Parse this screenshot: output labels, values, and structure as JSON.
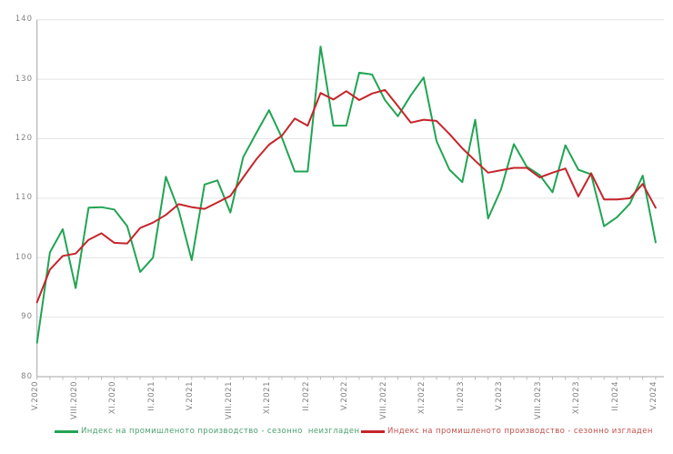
{
  "chart": {
    "y_axis": {
      "min": 80,
      "max": 140,
      "step": 10,
      "tick_labels": [
        "80",
        "90",
        "100",
        "110",
        "120",
        "130",
        "140"
      ]
    },
    "x_axis": {
      "label_every_n_months": 3,
      "shown_tick_labels": [
        "V.2020",
        "VIII.2020",
        "XI.2020",
        "II.2021",
        "V.2021",
        "VIII.2021",
        "XI.2021",
        "II.2022",
        "V.2022",
        "VIII.2022",
        "XI.2022",
        "II.2023",
        "V.2023",
        "VIII.2023",
        "XI.2023",
        "II.2024",
        "V.2024"
      ]
    },
    "colors": {
      "grid": "#e4e4e4",
      "axis": "#a6a6a6",
      "tick": "#bbbbbb",
      "label_text": "#828282"
    }
  },
  "legend": [
    {
      "label": "Индекс на промишленото производство - сезонно  неизгладен",
      "color": "#21a453",
      "text_color": "#4aa06d"
    },
    {
      "label": "Индекс на промишленото производство - сезонно изгладен",
      "color": "#c5252b",
      "text_color": "#c0504d"
    }
  ],
  "chart_data": {
    "type": "line",
    "title": "",
    "xlabel": "",
    "ylabel": "",
    "ylim": [
      80,
      140
    ],
    "grid": true,
    "legend_position": "bottom",
    "x": [
      "V.2020",
      "VI.2020",
      "VII.2020",
      "VIII.2020",
      "IX.2020",
      "X.2020",
      "XI.2020",
      "XII.2020",
      "I.2021",
      "II.2021",
      "III.2021",
      "IV.2021",
      "V.2021",
      "VI.2021",
      "VII.2021",
      "VIII.2021",
      "IX.2021",
      "X.2021",
      "XI.2021",
      "XII.2021",
      "I.2022",
      "II.2022",
      "III.2022",
      "IV.2022",
      "V.2022",
      "VI.2022",
      "VII.2022",
      "VIII.2022",
      "IX.2022",
      "X.2022",
      "XI.2022",
      "XII.2022",
      "I.2023",
      "II.2023",
      "III.2023",
      "IV.2023",
      "V.2023",
      "VI.2023",
      "VII.2023",
      "VIII.2023",
      "IX.2023",
      "X.2023",
      "XI.2023",
      "XII.2023",
      "I.2024",
      "II.2024",
      "III.2024",
      "IV.2024",
      "V.2024"
    ],
    "series": [
      {
        "name": "Индекс на промишленото производство - сезонно  неизгладен",
        "color": "#21a453",
        "values": [
          85.7,
          100.9,
          104.8,
          94.9,
          108.4,
          108.5,
          108.1,
          105.3,
          97.6,
          100.0,
          113.6,
          107.9,
          99.6,
          112.3,
          113.0,
          107.6,
          116.9,
          120.9,
          124.8,
          120.2,
          114.5,
          114.5,
          135.5,
          122.2,
          122.2,
          131.1,
          130.8,
          126.5,
          123.8,
          127.3,
          130.3,
          119.6,
          114.8,
          112.7,
          123.2,
          106.6,
          111.5,
          119.1,
          115.3,
          113.9,
          111.0,
          118.9,
          114.8,
          114.0,
          105.3,
          106.8,
          109.1,
          113.8,
          102.6
        ]
      },
      {
        "name": "Индекс на промишленото производство - сезонно изгладен",
        "color": "#c5252b",
        "values": [
          92.5,
          98.0,
          100.3,
          100.7,
          103.0,
          104.1,
          102.5,
          102.4,
          105.0,
          105.9,
          107.2,
          109.0,
          108.5,
          108.2,
          109.3,
          110.4,
          113.5,
          116.5,
          119.0,
          120.5,
          123.4,
          122.2,
          127.7,
          126.6,
          128.0,
          126.5,
          127.6,
          128.2,
          125.5,
          122.7,
          123.2,
          123.0,
          120.8,
          118.4,
          116.3,
          114.3,
          114.7,
          115.1,
          115.1,
          113.5,
          114.3,
          115.0,
          110.3,
          114.2,
          109.8,
          109.8,
          110.0,
          112.4,
          108.4
        ]
      }
    ]
  }
}
